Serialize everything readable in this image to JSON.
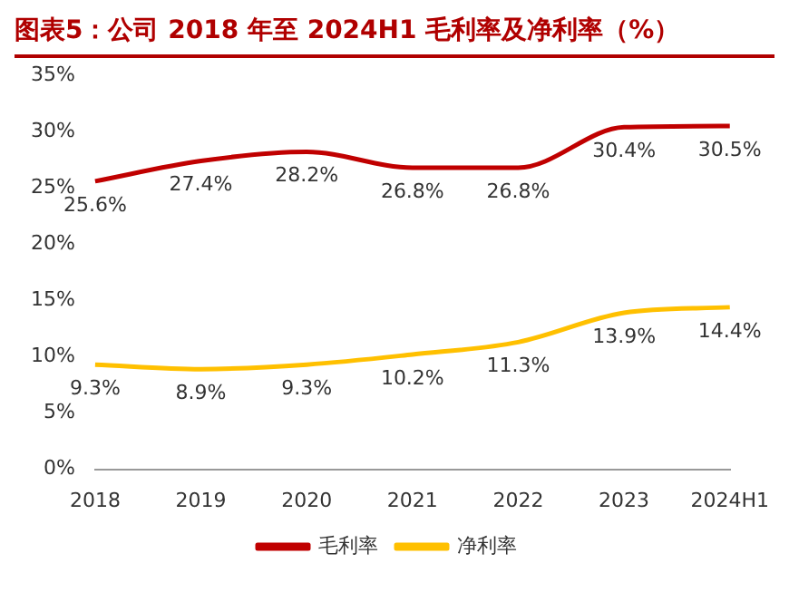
{
  "chart_data": {
    "type": "line",
    "title": "图表5：公司 2018 年至 2024H1 毛利率及净利率（%）",
    "categories": [
      "2018",
      "2019",
      "2020",
      "2021",
      "2022",
      "2023",
      "2024H1"
    ],
    "series": [
      {
        "name": "毛利率",
        "color": "#c00000",
        "values": [
          25.6,
          27.4,
          28.2,
          26.8,
          26.8,
          30.4,
          30.5
        ],
        "value_labels": [
          "25.6%",
          "27.4%",
          "28.2%",
          "26.8%",
          "26.8%",
          "30.4%",
          "30.5%"
        ]
      },
      {
        "name": "净利率",
        "color": "#ffc000",
        "values": [
          9.3,
          8.9,
          9.3,
          10.2,
          11.3,
          13.9,
          14.4
        ],
        "value_labels": [
          "9.3%",
          "8.9%",
          "9.3%",
          "10.2%",
          "11.3%",
          "13.9%",
          "14.4%"
        ]
      }
    ],
    "ylim": [
      0,
      35
    ],
    "yticks": [
      {
        "value": 0,
        "label": "0%"
      },
      {
        "value": 5,
        "label": "5%"
      },
      {
        "value": 10,
        "label": "10%"
      },
      {
        "value": 15,
        "label": "15%"
      },
      {
        "value": 20,
        "label": "20%"
      },
      {
        "value": 25,
        "label": "25%"
      },
      {
        "value": 30,
        "label": "30%"
      },
      {
        "value": 35,
        "label": "35%"
      }
    ],
    "legend": "bottom",
    "grid": false,
    "marker": "none"
  }
}
